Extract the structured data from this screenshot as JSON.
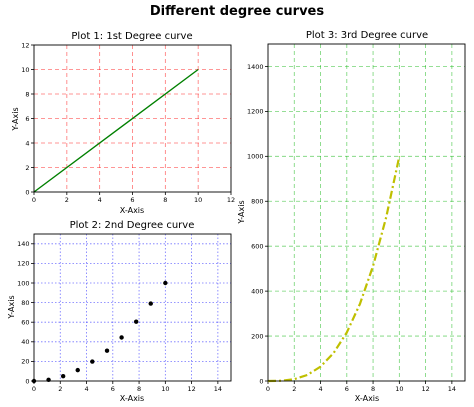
{
  "figure": {
    "suptitle": "Different degree curves"
  },
  "chart_data": [
    {
      "type": "line",
      "title": "Plot 1: 1st Degree curve",
      "xlabel": "X-Axis",
      "ylabel": "Y-Axis",
      "xlim": [
        0,
        12
      ],
      "ylim": [
        0,
        12
      ],
      "xticks": [
        0,
        2,
        4,
        6,
        8,
        10,
        12
      ],
      "yticks": [
        0,
        2,
        4,
        6,
        8,
        10,
        12
      ],
      "grid": true,
      "grid_color": "#ff0000",
      "grid_style": "dashed",
      "series": [
        {
          "color": "#008000",
          "style": "solid",
          "x": [
            0,
            10
          ],
          "y": [
            0,
            10
          ]
        }
      ]
    },
    {
      "type": "scatter",
      "title": "Plot 2: 2nd Degree curve",
      "xlabel": "X-Axis",
      "ylabel": "Y-Axis",
      "xlim": [
        0,
        15
      ],
      "ylim": [
        0,
        150
      ],
      "xticks": [
        0,
        2,
        4,
        6,
        8,
        10,
        12,
        14
      ],
      "yticks": [
        0,
        20,
        40,
        60,
        80,
        100,
        120,
        140
      ],
      "grid": true,
      "grid_color": "#0000ff",
      "grid_style": "dotted",
      "series": [
        {
          "color": "#000000",
          "marker": "circle",
          "x": [
            0,
            1.11,
            2.22,
            3.33,
            4.44,
            5.56,
            6.67,
            7.78,
            8.89,
            10
          ],
          "y": [
            0,
            1.23,
            4.94,
            11.1,
            19.8,
            30.9,
            44.4,
            60.5,
            79.0,
            100
          ]
        }
      ]
    },
    {
      "type": "line",
      "title": "Plot 3: 3rd Degree curve",
      "xlabel": "X-Axis",
      "ylabel": "Y-Axis",
      "xlim": [
        0,
        15
      ],
      "ylim": [
        0,
        1500
      ],
      "xticks": [
        0,
        2,
        4,
        6,
        8,
        10,
        12,
        14
      ],
      "yticks": [
        0,
        200,
        400,
        600,
        800,
        1000,
        1200,
        1400
      ],
      "grid": true,
      "grid_color": "#00b000",
      "grid_style": "dashed",
      "series": [
        {
          "color": "#bfbf00",
          "style": "dashdot",
          "x": [
            0,
            1,
            2,
            3,
            4,
            5,
            6,
            7,
            8,
            9,
            10
          ],
          "y": [
            0,
            1,
            8,
            27,
            64,
            125,
            216,
            343,
            512,
            729,
            1000
          ]
        }
      ]
    }
  ]
}
